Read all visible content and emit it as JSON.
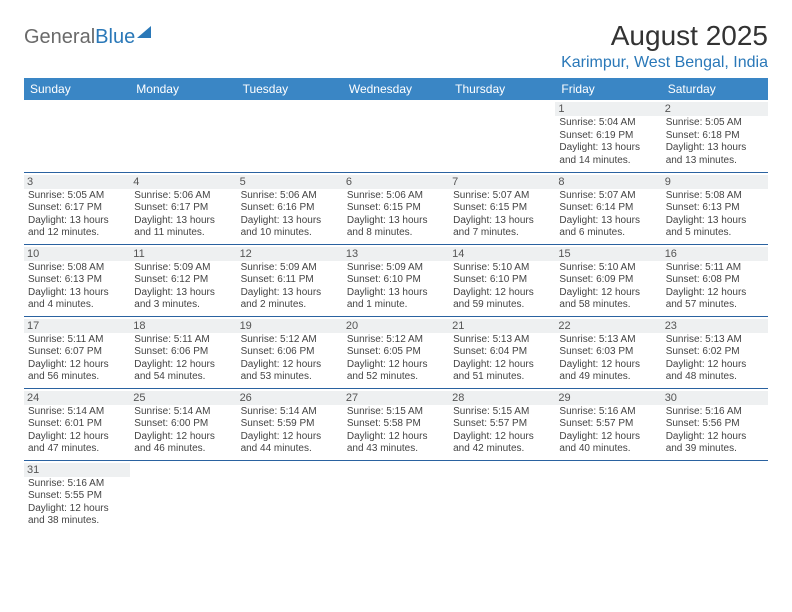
{
  "logo": {
    "text1": "General",
    "text2": "Blue"
  },
  "title": "August 2025",
  "subtitle": "Karimpur, West Bengal, India",
  "colors": {
    "header_bg": "#3a86c5",
    "header_text": "#ffffff",
    "row_border": "#2a62a0",
    "daynum_bg": "#eef0f1",
    "subtitle": "#2a78b8"
  },
  "weekdays": [
    "Sunday",
    "Monday",
    "Tuesday",
    "Wednesday",
    "Thursday",
    "Friday",
    "Saturday"
  ],
  "weeks": [
    [
      null,
      null,
      null,
      null,
      null,
      {
        "n": "1",
        "sr": "Sunrise: 5:04 AM",
        "ss": "Sunset: 6:19 PM",
        "dl": "Daylight: 13 hours and 14 minutes."
      },
      {
        "n": "2",
        "sr": "Sunrise: 5:05 AM",
        "ss": "Sunset: 6:18 PM",
        "dl": "Daylight: 13 hours and 13 minutes."
      }
    ],
    [
      {
        "n": "3",
        "sr": "Sunrise: 5:05 AM",
        "ss": "Sunset: 6:17 PM",
        "dl": "Daylight: 13 hours and 12 minutes."
      },
      {
        "n": "4",
        "sr": "Sunrise: 5:06 AM",
        "ss": "Sunset: 6:17 PM",
        "dl": "Daylight: 13 hours and 11 minutes."
      },
      {
        "n": "5",
        "sr": "Sunrise: 5:06 AM",
        "ss": "Sunset: 6:16 PM",
        "dl": "Daylight: 13 hours and 10 minutes."
      },
      {
        "n": "6",
        "sr": "Sunrise: 5:06 AM",
        "ss": "Sunset: 6:15 PM",
        "dl": "Daylight: 13 hours and 8 minutes."
      },
      {
        "n": "7",
        "sr": "Sunrise: 5:07 AM",
        "ss": "Sunset: 6:15 PM",
        "dl": "Daylight: 13 hours and 7 minutes."
      },
      {
        "n": "8",
        "sr": "Sunrise: 5:07 AM",
        "ss": "Sunset: 6:14 PM",
        "dl": "Daylight: 13 hours and 6 minutes."
      },
      {
        "n": "9",
        "sr": "Sunrise: 5:08 AM",
        "ss": "Sunset: 6:13 PM",
        "dl": "Daylight: 13 hours and 5 minutes."
      }
    ],
    [
      {
        "n": "10",
        "sr": "Sunrise: 5:08 AM",
        "ss": "Sunset: 6:13 PM",
        "dl": "Daylight: 13 hours and 4 minutes."
      },
      {
        "n": "11",
        "sr": "Sunrise: 5:09 AM",
        "ss": "Sunset: 6:12 PM",
        "dl": "Daylight: 13 hours and 3 minutes."
      },
      {
        "n": "12",
        "sr": "Sunrise: 5:09 AM",
        "ss": "Sunset: 6:11 PM",
        "dl": "Daylight: 13 hours and 2 minutes."
      },
      {
        "n": "13",
        "sr": "Sunrise: 5:09 AM",
        "ss": "Sunset: 6:10 PM",
        "dl": "Daylight: 13 hours and 1 minute."
      },
      {
        "n": "14",
        "sr": "Sunrise: 5:10 AM",
        "ss": "Sunset: 6:10 PM",
        "dl": "Daylight: 12 hours and 59 minutes."
      },
      {
        "n": "15",
        "sr": "Sunrise: 5:10 AM",
        "ss": "Sunset: 6:09 PM",
        "dl": "Daylight: 12 hours and 58 minutes."
      },
      {
        "n": "16",
        "sr": "Sunrise: 5:11 AM",
        "ss": "Sunset: 6:08 PM",
        "dl": "Daylight: 12 hours and 57 minutes."
      }
    ],
    [
      {
        "n": "17",
        "sr": "Sunrise: 5:11 AM",
        "ss": "Sunset: 6:07 PM",
        "dl": "Daylight: 12 hours and 56 minutes."
      },
      {
        "n": "18",
        "sr": "Sunrise: 5:11 AM",
        "ss": "Sunset: 6:06 PM",
        "dl": "Daylight: 12 hours and 54 minutes."
      },
      {
        "n": "19",
        "sr": "Sunrise: 5:12 AM",
        "ss": "Sunset: 6:06 PM",
        "dl": "Daylight: 12 hours and 53 minutes."
      },
      {
        "n": "20",
        "sr": "Sunrise: 5:12 AM",
        "ss": "Sunset: 6:05 PM",
        "dl": "Daylight: 12 hours and 52 minutes."
      },
      {
        "n": "21",
        "sr": "Sunrise: 5:13 AM",
        "ss": "Sunset: 6:04 PM",
        "dl": "Daylight: 12 hours and 51 minutes."
      },
      {
        "n": "22",
        "sr": "Sunrise: 5:13 AM",
        "ss": "Sunset: 6:03 PM",
        "dl": "Daylight: 12 hours and 49 minutes."
      },
      {
        "n": "23",
        "sr": "Sunrise: 5:13 AM",
        "ss": "Sunset: 6:02 PM",
        "dl": "Daylight: 12 hours and 48 minutes."
      }
    ],
    [
      {
        "n": "24",
        "sr": "Sunrise: 5:14 AM",
        "ss": "Sunset: 6:01 PM",
        "dl": "Daylight: 12 hours and 47 minutes."
      },
      {
        "n": "25",
        "sr": "Sunrise: 5:14 AM",
        "ss": "Sunset: 6:00 PM",
        "dl": "Daylight: 12 hours and 46 minutes."
      },
      {
        "n": "26",
        "sr": "Sunrise: 5:14 AM",
        "ss": "Sunset: 5:59 PM",
        "dl": "Daylight: 12 hours and 44 minutes."
      },
      {
        "n": "27",
        "sr": "Sunrise: 5:15 AM",
        "ss": "Sunset: 5:58 PM",
        "dl": "Daylight: 12 hours and 43 minutes."
      },
      {
        "n": "28",
        "sr": "Sunrise: 5:15 AM",
        "ss": "Sunset: 5:57 PM",
        "dl": "Daylight: 12 hours and 42 minutes."
      },
      {
        "n": "29",
        "sr": "Sunrise: 5:16 AM",
        "ss": "Sunset: 5:57 PM",
        "dl": "Daylight: 12 hours and 40 minutes."
      },
      {
        "n": "30",
        "sr": "Sunrise: 5:16 AM",
        "ss": "Sunset: 5:56 PM",
        "dl": "Daylight: 12 hours and 39 minutes."
      }
    ],
    [
      {
        "n": "31",
        "sr": "Sunrise: 5:16 AM",
        "ss": "Sunset: 5:55 PM",
        "dl": "Daylight: 12 hours and 38 minutes."
      },
      null,
      null,
      null,
      null,
      null,
      null
    ]
  ]
}
